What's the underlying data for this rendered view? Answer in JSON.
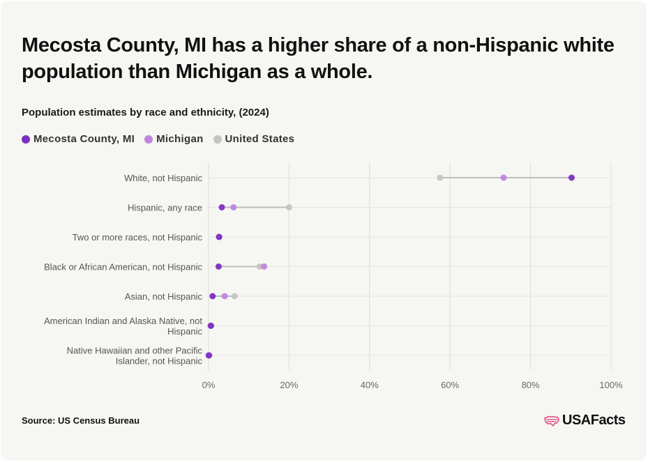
{
  "header": {
    "title": "Mecosta County, MI has a higher share of a non-Hispanic white population than Michigan as a whole.",
    "subtitle": "Population estimates by race and ethnicity, (2024)"
  },
  "legend": [
    {
      "label": "Mecosta County, MI",
      "color": "#7b2fbf"
    },
    {
      "label": "Michigan",
      "color": "#c084e0"
    },
    {
      "label": "United States",
      "color": "#c4c4c0"
    }
  ],
  "footer": {
    "source": "Source: US Census Bureau",
    "brand": "USAFacts",
    "brand_icon": "us-map-icon"
  },
  "chart_data": {
    "type": "dot-range",
    "xlim": [
      0,
      100
    ],
    "x_ticks": [
      "0%",
      "20%",
      "40%",
      "60%",
      "80%",
      "100%"
    ],
    "x_tick_values": [
      0,
      20,
      40,
      60,
      80,
      100
    ],
    "grid": true,
    "legend_position": "top-left",
    "categories": [
      [
        "White, not Hispanic"
      ],
      [
        "Hispanic, any race"
      ],
      [
        "Two or more races, not Hispanic"
      ],
      [
        "Black or African American, not Hispanic"
      ],
      [
        "Asian, not Hispanic"
      ],
      [
        "American Indian and Alaska Native, not",
        "Hispanic"
      ],
      [
        "Native Hawaiian and other Pacific",
        "Islander, not Hispanic"
      ]
    ],
    "series": [
      {
        "name": "Mecosta County, MI",
        "color": "#7b2fbf",
        "values": [
          90.2,
          3.3,
          2.6,
          2.5,
          1.0,
          0.6,
          0.1
        ]
      },
      {
        "name": "Michigan",
        "color": "#c084e0",
        "values": [
          73.3,
          6.2,
          2.6,
          13.8,
          4.0,
          0.5,
          0.0
        ]
      },
      {
        "name": "United States",
        "color": "#c4c4c0",
        "values": [
          57.5,
          20.0,
          2.7,
          12.7,
          6.5,
          0.6,
          0.2
        ]
      }
    ]
  }
}
